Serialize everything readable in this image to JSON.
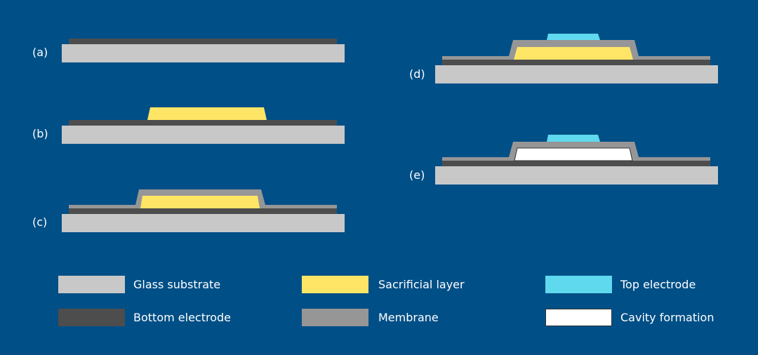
{
  "steps": [
    {
      "label": "(a)"
    },
    {
      "label": "(b)"
    },
    {
      "label": "(c)"
    },
    {
      "label": "(d)"
    },
    {
      "label": "(e)"
    }
  ],
  "legend": [
    {
      "label": "Glass substrate",
      "color": "#c8c8c8"
    },
    {
      "label": "Bottom electrode",
      "color": "#4d4d4d"
    },
    {
      "label": "Sacrificial layer",
      "color": "#ffe566"
    },
    {
      "label": "Membrane",
      "color": "#969696"
    },
    {
      "label": "Top electrode",
      "color": "#5fd9ee"
    },
    {
      "label": "Cavity formation",
      "color": "#ffffff"
    }
  ],
  "colors": {
    "background": "#004f87"
  }
}
